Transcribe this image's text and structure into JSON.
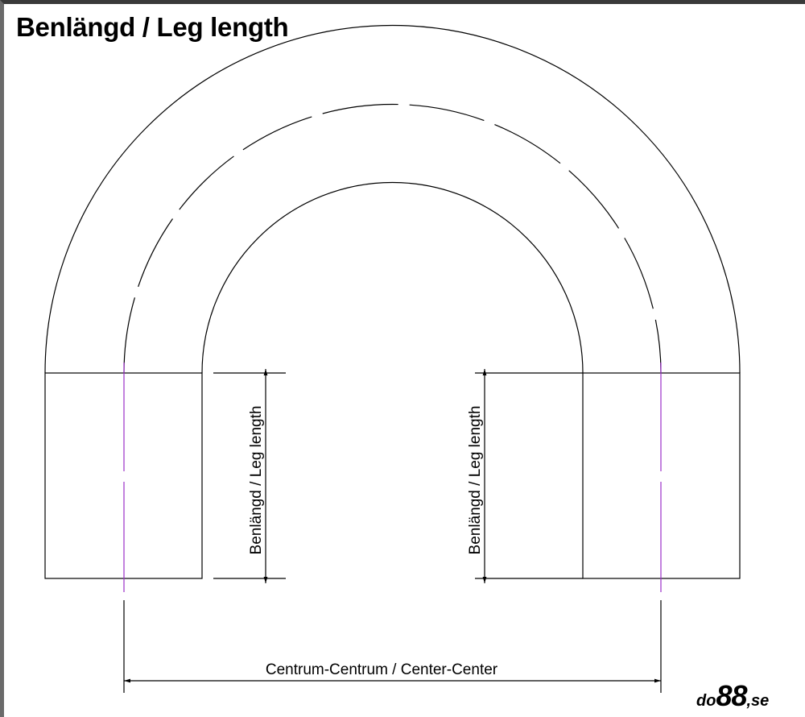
{
  "title": "Benlängd / Leg length",
  "leg_label_left": "Benlängd / Leg length",
  "leg_label_right": "Benlängd / Leg length",
  "center_label": "Centrum-Centrum / Center-Center",
  "logo": {
    "prefix": "do",
    "number": "88",
    "suffix": ",se"
  },
  "colors": {
    "line": "#000000",
    "centerline": "#9b30c8"
  }
}
